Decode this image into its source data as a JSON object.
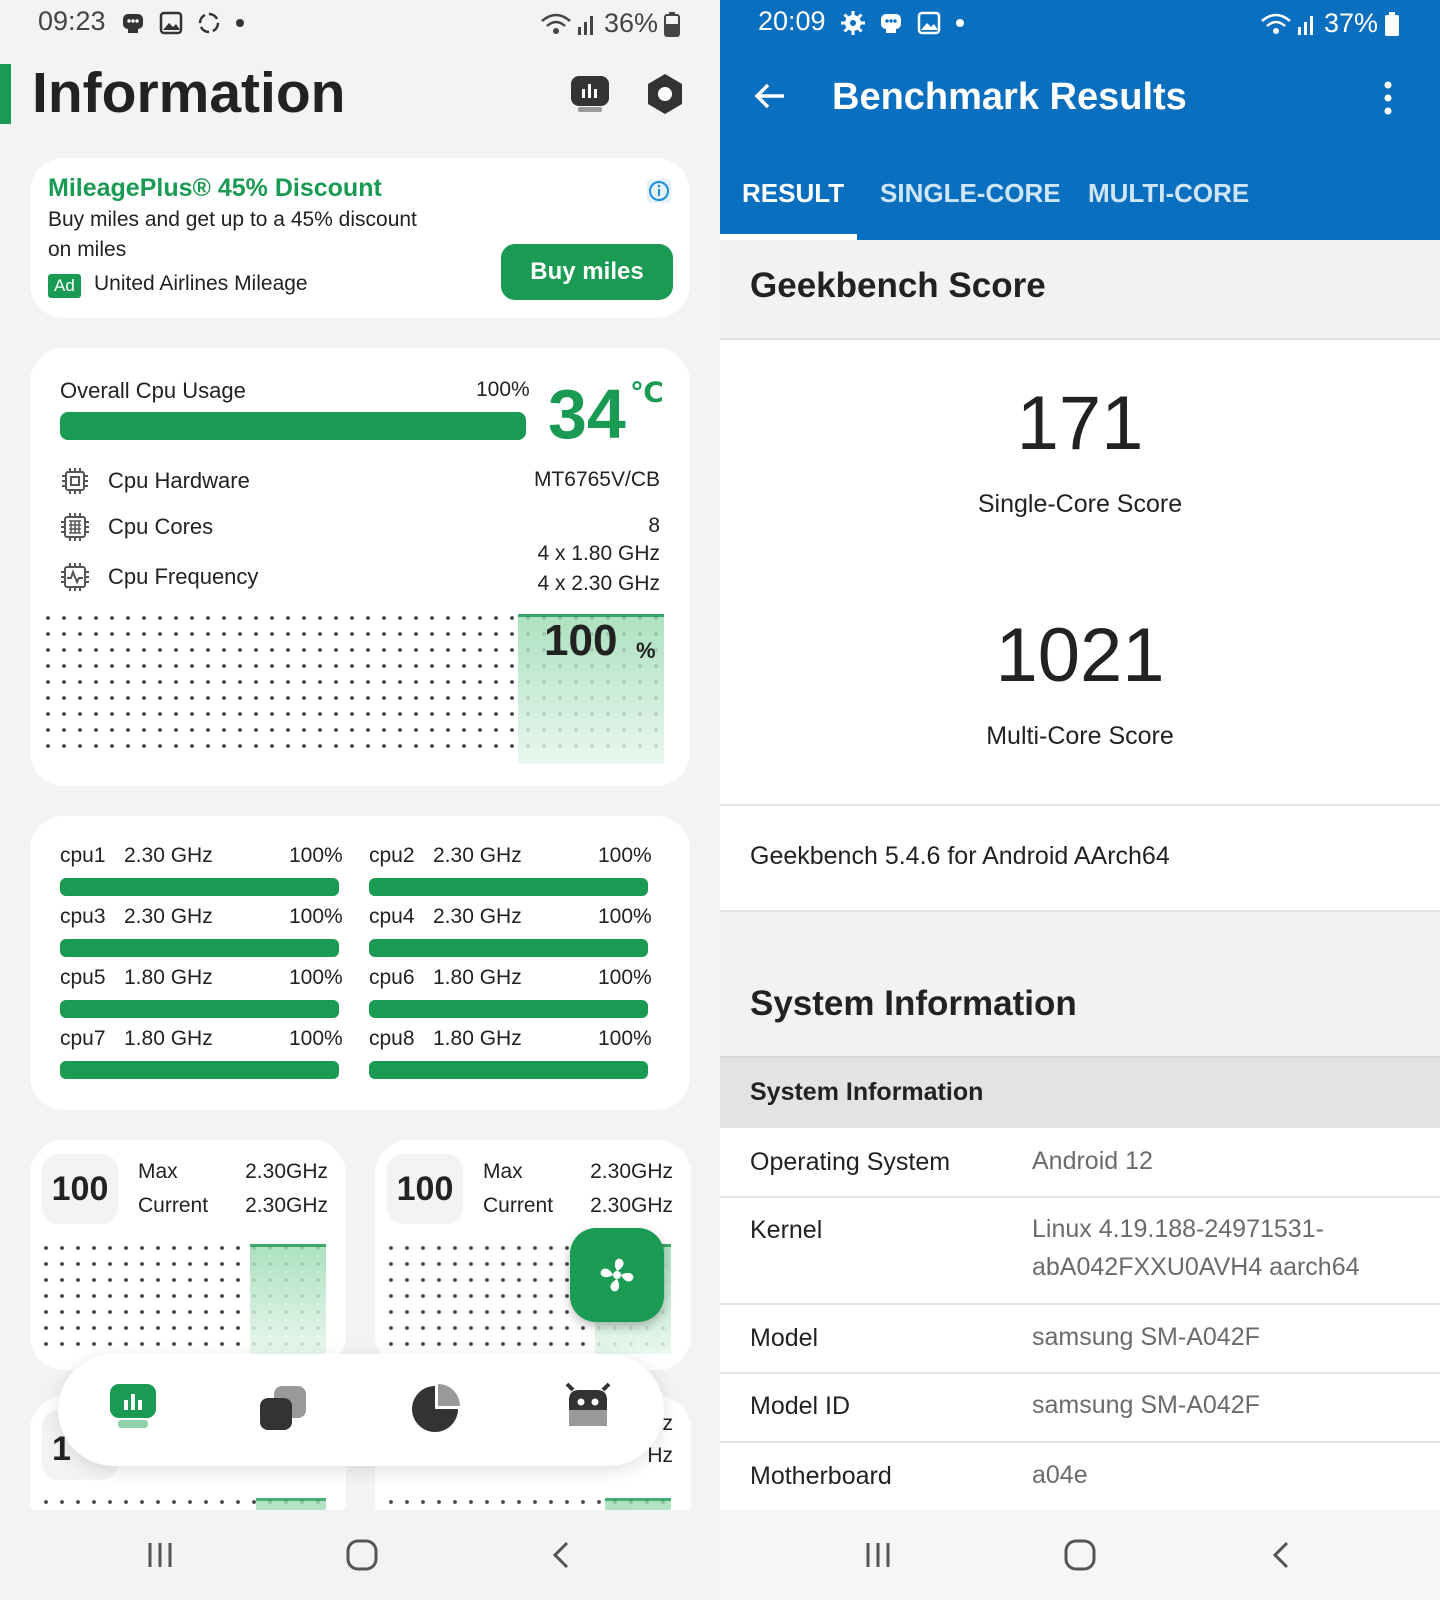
{
  "left": {
    "status": {
      "time": "09:23",
      "battery": "36%"
    },
    "title": "Information",
    "ad": {
      "title": "MileagePlus® 45% Discount",
      "body1": "Buy miles and get up to a 45% discount",
      "body2": "on miles",
      "badge": "Ad",
      "advertiser": "United Airlines Mileage",
      "button": "Buy miles"
    },
    "cpu": {
      "usage_label": "Overall Cpu Usage",
      "usage_pct": "100%",
      "usage_fraction": 1.0,
      "temp": "34",
      "temp_unit": "℃",
      "rows": [
        {
          "label": "Cpu Hardware",
          "value": "MT6765V/CB",
          "icon": "chip-icon"
        },
        {
          "label": "Cpu Cores",
          "value": "8",
          "icon": "cores-icon"
        },
        {
          "label": "Cpu Frequency",
          "value": "4 x 1.80 GHz",
          "value2": "4 x 2.30 GHz",
          "icon": "frequency-icon"
        }
      ],
      "graph_label": "100",
      "graph_unit": "%"
    },
    "cores": [
      {
        "name": "cpu1",
        "freq": "2.30 GHz",
        "pct": "100%",
        "fraction": 1
      },
      {
        "name": "cpu2",
        "freq": "2.30 GHz",
        "pct": "100%",
        "fraction": 1
      },
      {
        "name": "cpu3",
        "freq": "2.30 GHz",
        "pct": "100%",
        "fraction": 1
      },
      {
        "name": "cpu4",
        "freq": "2.30 GHz",
        "pct": "100%",
        "fraction": 1
      },
      {
        "name": "cpu5",
        "freq": "1.80 GHz",
        "pct": "100%",
        "fraction": 1
      },
      {
        "name": "cpu6",
        "freq": "1.80 GHz",
        "pct": "100%",
        "fraction": 1
      },
      {
        "name": "cpu7",
        "freq": "1.80 GHz",
        "pct": "100%",
        "fraction": 1
      },
      {
        "name": "cpu8",
        "freq": "1.80 GHz",
        "pct": "100%",
        "fraction": 1
      }
    ],
    "mini": [
      {
        "value": "100",
        "max_label": "Max",
        "max": "2.30GHz",
        "cur_label": "Current",
        "cur": "2.30GHz"
      },
      {
        "value": "100",
        "max_label": "Max",
        "max": "2.30GHz",
        "cur_label": "Current",
        "cur": "2.30GHz"
      }
    ],
    "partial": {
      "left": "1",
      "right1": "z",
      "right2": "Hz"
    },
    "bottom_nav": [
      "dashboard-icon",
      "apps-icon",
      "pie-chart-icon",
      "android-icon"
    ],
    "accent": "#1a9a52"
  },
  "right": {
    "status": {
      "time": "20:09",
      "battery": "37%"
    },
    "title": "Benchmark Results",
    "tabs": [
      "RESULT",
      "SINGLE-CORE",
      "MULTI-CORE"
    ],
    "score_header": "Geekbench Score",
    "single": {
      "value": "171",
      "label": "Single-Core Score"
    },
    "multi": {
      "value": "1021",
      "label": "Multi-Core Score"
    },
    "version": "Geekbench 5.4.6 for Android AArch64",
    "sys_header": "System Information",
    "sys_sub": "System Information",
    "rows": [
      {
        "label": "Operating System",
        "value": "Android 12"
      },
      {
        "label": "Kernel",
        "value": "Linux 4.19.188-24971531-",
        "value2": "abA042FXXU0AVH4 aarch64"
      },
      {
        "label": "Model",
        "value": "samsung SM-A042F"
      },
      {
        "label": "Model ID",
        "value": "samsung SM-A042F"
      },
      {
        "label": "Motherboard",
        "value": "a04e"
      }
    ],
    "accent": "#0a6fbf"
  }
}
